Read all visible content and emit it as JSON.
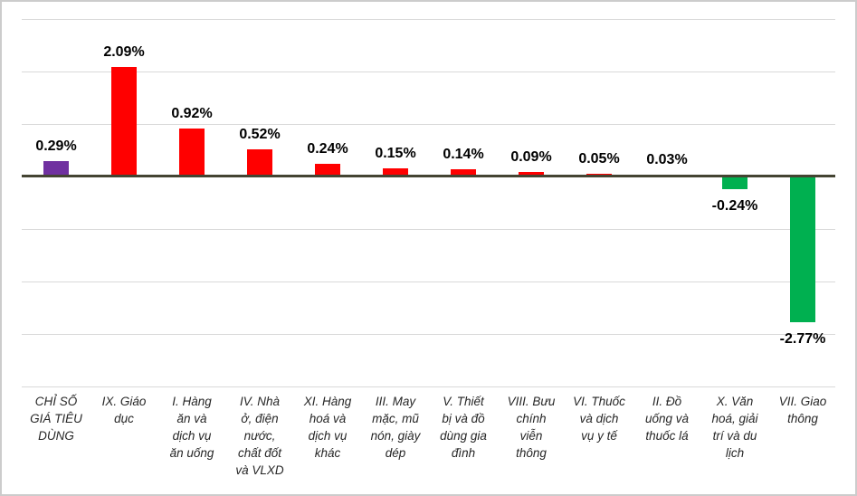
{
  "chart_data": {
    "type": "bar",
    "orientation": "vertical",
    "title": "",
    "legend": false,
    "grid": true,
    "y_axis": {
      "unit": "%",
      "min": -4,
      "max": 3,
      "gridline_step": 1,
      "tick_labels_visible": false
    },
    "zero_line_visible": true,
    "colors": {
      "gridline": "#d9d9d9",
      "zero_line": "#444432",
      "value_label": "#000000",
      "category_label": "#262626",
      "border": "#cccccc",
      "background": "#ffffff",
      "cpi_bar": "#7030A0",
      "positive_bar": "#FF0000",
      "negative_bar": "#00B050"
    },
    "bars": [
      {
        "category": "CHỈ SỐ GIÁ TIÊU DÙNG",
        "category_lines": [
          "CHỈ SỐ",
          "GIÁ TIÊU",
          "DÙNG"
        ],
        "value": 0.29,
        "label": "0.29%",
        "color": "#7030A0"
      },
      {
        "category": "IX. Giáo dục",
        "category_lines": [
          "IX. Giáo",
          "dục"
        ],
        "value": 2.09,
        "label": "2.09%",
        "color": "#FF0000"
      },
      {
        "category": "I. Hàng ăn và dịch vụ ăn uống",
        "category_lines": [
          "I. Hàng",
          "ăn và",
          "dịch vụ",
          "ăn uống"
        ],
        "value": 0.92,
        "label": "0.92%",
        "color": "#FF0000"
      },
      {
        "category": "IV. Nhà ở, điện nước, chất đốt và VLXD",
        "category_lines": [
          "IV. Nhà",
          "ở, điện",
          "nước,",
          "chất đốt",
          "và VLXD"
        ],
        "value": 0.52,
        "label": "0.52%",
        "color": "#FF0000"
      },
      {
        "category": "XI. Hàng hoá và dịch vụ khác",
        "category_lines": [
          "XI. Hàng",
          "hoá và",
          "dịch vụ",
          "khác"
        ],
        "value": 0.24,
        "label": "0.24%",
        "color": "#FF0000"
      },
      {
        "category": "III. May mặc, mũ nón, giày dép",
        "category_lines": [
          "III. May",
          "mặc, mũ",
          "nón, giày",
          "dép"
        ],
        "value": 0.15,
        "label": "0.15%",
        "color": "#FF0000"
      },
      {
        "category": "V. Thiết bị và đồ dùng gia đình",
        "category_lines": [
          "V. Thiết",
          "bị và đồ",
          "dùng gia",
          "đình"
        ],
        "value": 0.14,
        "label": "0.14%",
        "color": "#FF0000"
      },
      {
        "category": "VIII. Bưu chính viễn thông",
        "category_lines": [
          "VIII. Bưu",
          "chính",
          "viễn",
          "thông"
        ],
        "value": 0.09,
        "label": "0.09%",
        "color": "#FF0000"
      },
      {
        "category": "VI. Thuốc và dịch vụ y tế",
        "category_lines": [
          "VI. Thuốc",
          "và dịch",
          "vụ y tế"
        ],
        "value": 0.05,
        "label": "0.05%",
        "color": "#FF0000"
      },
      {
        "category": "II. Đồ uống và thuốc lá",
        "category_lines": [
          "II. Đồ",
          "uống và",
          "thuốc lá"
        ],
        "value": 0.03,
        "label": "0.03%",
        "color": "#FF0000"
      },
      {
        "category": "X. Văn hoá, giải trí và du lịch",
        "category_lines": [
          "X. Văn",
          "hoá, giải",
          "trí và du",
          "lịch"
        ],
        "value": -0.24,
        "label": "-0.24%",
        "color": "#00B050"
      },
      {
        "category": "VII. Giao thông",
        "category_lines": [
          "VII. Giao",
          "thông"
        ],
        "value": -2.77,
        "label": "-2.77%",
        "color": "#00B050"
      }
    ]
  }
}
